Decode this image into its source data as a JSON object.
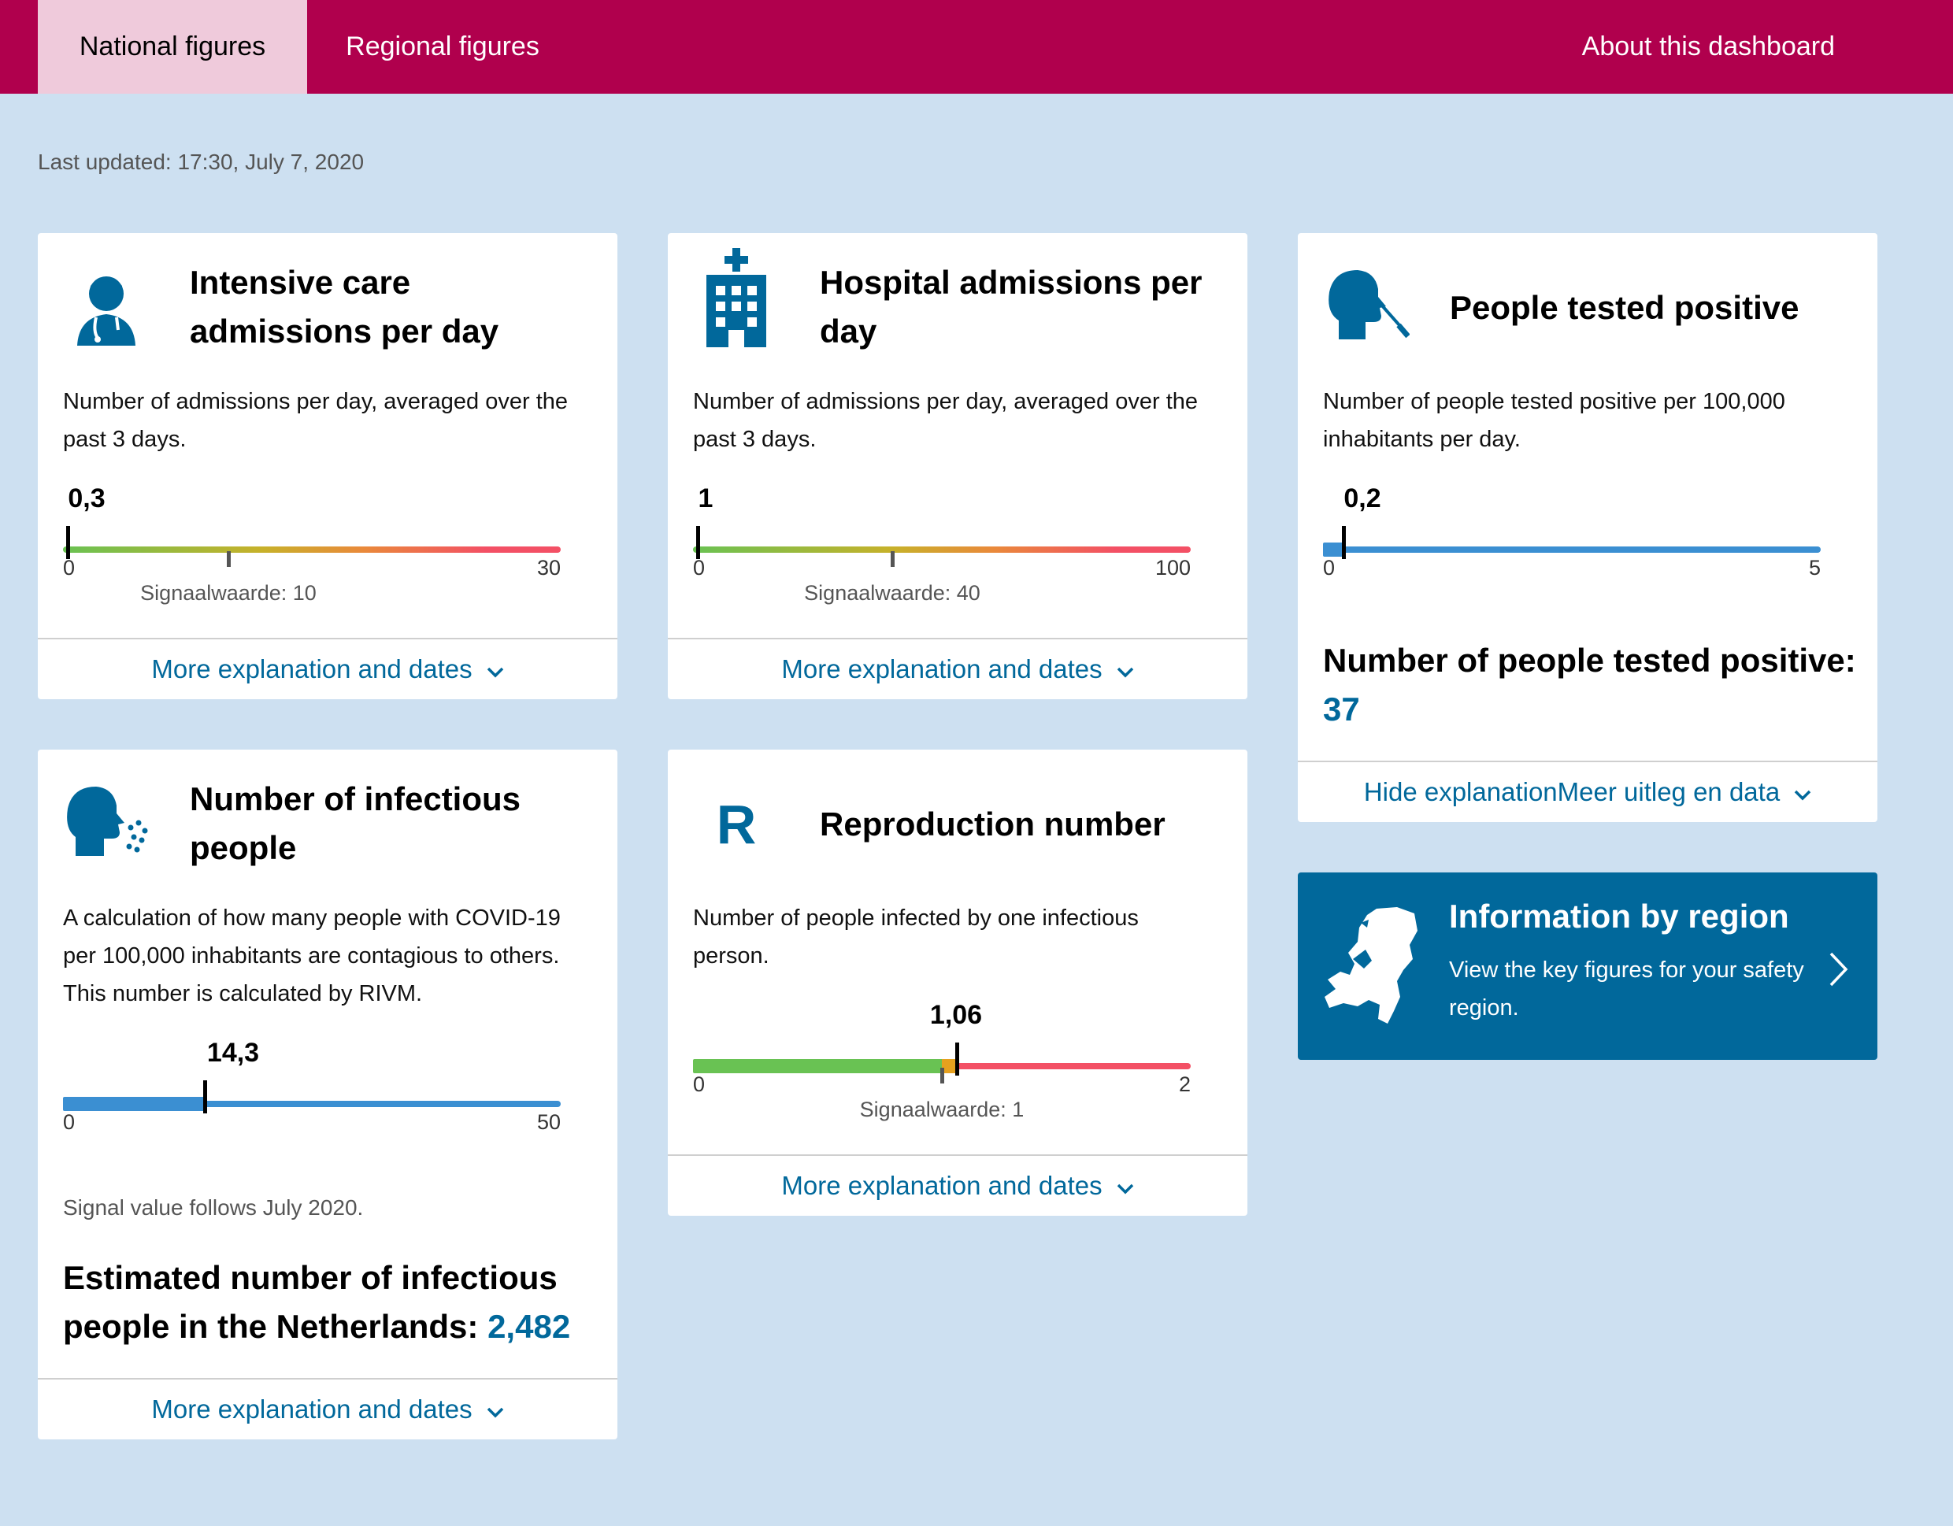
{
  "nav": {
    "tabs": [
      {
        "label": "National figures"
      },
      {
        "label": "Regional figures"
      }
    ],
    "about_label": "About this dashboard"
  },
  "last_updated": "Last updated: 17:30, July 7, 2020",
  "cards": {
    "ic": {
      "title": "Intensive care admissions per day",
      "description": "Number of admissions per day, averaged over the past 3 days.",
      "value": "0,3",
      "min": "0",
      "max": "30",
      "signal_label": "Signaalwaarde: 10",
      "footer": "More explanation and dates"
    },
    "hospital": {
      "title": "Hospital admissions per day",
      "description": "Number of admissions per day, averaged over the past 3 days.",
      "value": "1",
      "min": "0",
      "max": "100",
      "signal_label": "Signaalwaarde: 40",
      "footer": "More explanation and dates"
    },
    "positive": {
      "title": "People tested positive",
      "description": "Number of people tested positive per 100,000 inhabitants per day.",
      "value": "0,2",
      "min": "0",
      "max": "5",
      "stat_label": "Number of people tested positive:",
      "stat_value": "37",
      "footer": "Hide explanationMeer uitleg en data"
    },
    "infectious": {
      "title": "Number of infectious people",
      "description": "A calculation of how many people with COVID-19 per 100,000 inhabitants are contagious to others. This number is calculated by RIVM.",
      "value": "14,3",
      "min": "0",
      "max": "50",
      "note": "Signal value follows July 2020.",
      "stat_label": "Estimated number of infectious people in the Netherlands:",
      "stat_value": "2,482",
      "footer": "More explanation and dates"
    },
    "reproduction": {
      "icon_letter": "R",
      "title": "Reproduction number",
      "description": "Number of people infected by one infectious person.",
      "value": "1,06",
      "min": "0",
      "max": "2",
      "signal_label": "Signaalwaarde: 1",
      "footer": "More explanation and dates"
    }
  },
  "region_banner": {
    "title": "Information by region",
    "text": "View the key figures for your safety region."
  },
  "colors": {
    "brand": "#b0004d",
    "tab_active": "#efcadb",
    "background": "#cde0f1",
    "link": "#01689b",
    "gauge_blue": "#3b8fd2",
    "gauge_green": "#69c253",
    "gauge_red": "#f35065"
  }
}
